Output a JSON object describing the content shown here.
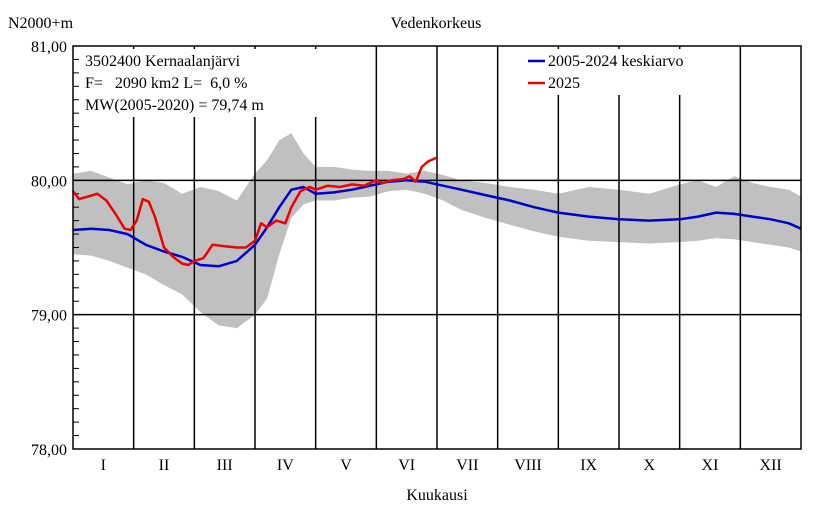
{
  "chart_data": {
    "type": "line",
    "title": "Vedenkorkeus",
    "ylabel": "N2000+m",
    "xlabel": "Kuukausi",
    "ylim": [
      78.0,
      81.0
    ],
    "y_ticks": [
      "78,00",
      "79,00",
      "80,00",
      "81,00"
    ],
    "y_tick_values": [
      78.0,
      79.0,
      80.0,
      81.0
    ],
    "categories": [
      "I",
      "II",
      "III",
      "IV",
      "V",
      "VI",
      "VII",
      "VIII",
      "IX",
      "X",
      "XI",
      "XII"
    ],
    "grid": true,
    "legend_position": "top-right",
    "info_lines": [
      "3502400 Kernaalanjärvi",
      "F=   2090 km2 L=  6,0 %",
      "MW(2005-2020) = 79,74 m"
    ],
    "series": [
      {
        "name": "2005-2024 keskiarvo",
        "color": "#0000cc",
        "x": [
          0,
          0.3,
          0.6,
          0.9,
          1.2,
          1.5,
          1.8,
          2.1,
          2.4,
          2.7,
          3.0,
          3.2,
          3.4,
          3.6,
          3.8,
          4.0,
          4.3,
          4.6,
          4.9,
          5.2,
          5.5,
          5.8,
          6.1,
          6.4,
          6.8,
          7.2,
          7.6,
          8.0,
          8.5,
          9.0,
          9.5,
          10.0,
          10.3,
          10.6,
          10.9,
          11.2,
          11.5,
          11.8,
          12.0
        ],
        "values": [
          79.63,
          79.64,
          79.63,
          79.6,
          79.52,
          79.47,
          79.43,
          79.37,
          79.36,
          79.4,
          79.52,
          79.65,
          79.8,
          79.93,
          79.95,
          79.9,
          79.91,
          79.93,
          79.96,
          79.99,
          80.0,
          79.99,
          79.96,
          79.93,
          79.89,
          79.85,
          79.8,
          79.76,
          79.73,
          79.71,
          79.7,
          79.71,
          79.73,
          79.76,
          79.75,
          79.73,
          79.71,
          79.68,
          79.64
        ]
      },
      {
        "name": "2025",
        "color": "#ee0000",
        "x": [
          0,
          0.1,
          0.25,
          0.4,
          0.55,
          0.7,
          0.85,
          0.95,
          1.05,
          1.15,
          1.25,
          1.35,
          1.5,
          1.65,
          1.8,
          1.9,
          2.0,
          2.15,
          2.3,
          2.5,
          2.7,
          2.85,
          3.0,
          3.1,
          3.2,
          3.35,
          3.5,
          3.6,
          3.75,
          3.9,
          4.0,
          4.2,
          4.4,
          4.6,
          4.8,
          5.0,
          5.1,
          5.25,
          5.45,
          5.55,
          5.65,
          5.75,
          5.85,
          6.0
        ],
        "values": [
          79.92,
          79.86,
          79.88,
          79.9,
          79.85,
          79.75,
          79.64,
          79.63,
          79.7,
          79.86,
          79.84,
          79.73,
          79.5,
          79.43,
          79.38,
          79.37,
          79.4,
          79.42,
          79.52,
          79.51,
          79.5,
          79.5,
          79.55,
          79.68,
          79.65,
          79.7,
          79.68,
          79.8,
          79.92,
          79.95,
          79.93,
          79.96,
          79.95,
          79.97,
          79.96,
          80.0,
          79.98,
          80.0,
          80.01,
          80.03,
          79.99,
          80.1,
          80.14,
          80.17
        ]
      }
    ],
    "range_band": {
      "color": "#c0c0c0",
      "x": [
        0,
        0.3,
        0.6,
        0.9,
        1.2,
        1.5,
        1.8,
        2.1,
        2.4,
        2.7,
        3.0,
        3.2,
        3.4,
        3.6,
        3.8,
        4.0,
        4.3,
        4.6,
        4.9,
        5.2,
        5.5,
        5.8,
        6.1,
        6.4,
        6.8,
        7.2,
        7.6,
        8.0,
        8.5,
        9.0,
        9.5,
        10.0,
        10.3,
        10.6,
        10.9,
        11.2,
        11.5,
        11.8,
        12.0
      ],
      "max": [
        80.05,
        80.07,
        80.02,
        79.97,
        80.0,
        79.98,
        79.9,
        79.95,
        79.92,
        79.85,
        80.05,
        80.15,
        80.3,
        80.35,
        80.2,
        80.1,
        80.1,
        80.08,
        80.07,
        80.07,
        80.05,
        80.07,
        80.04,
        80.0,
        79.98,
        79.95,
        79.93,
        79.9,
        79.95,
        79.93,
        79.9,
        79.97,
        80.0,
        79.95,
        80.03,
        79.98,
        79.95,
        79.93,
        79.88
      ],
      "min": [
        79.45,
        79.44,
        79.4,
        79.35,
        79.3,
        79.22,
        79.15,
        79.02,
        78.92,
        78.9,
        79.0,
        79.12,
        79.45,
        79.72,
        79.82,
        79.85,
        79.85,
        79.87,
        79.88,
        79.92,
        79.93,
        79.9,
        79.85,
        79.78,
        79.72,
        79.67,
        79.62,
        79.58,
        79.55,
        79.54,
        79.53,
        79.54,
        79.55,
        79.57,
        79.56,
        79.54,
        79.52,
        79.5,
        79.47
      ]
    }
  }
}
